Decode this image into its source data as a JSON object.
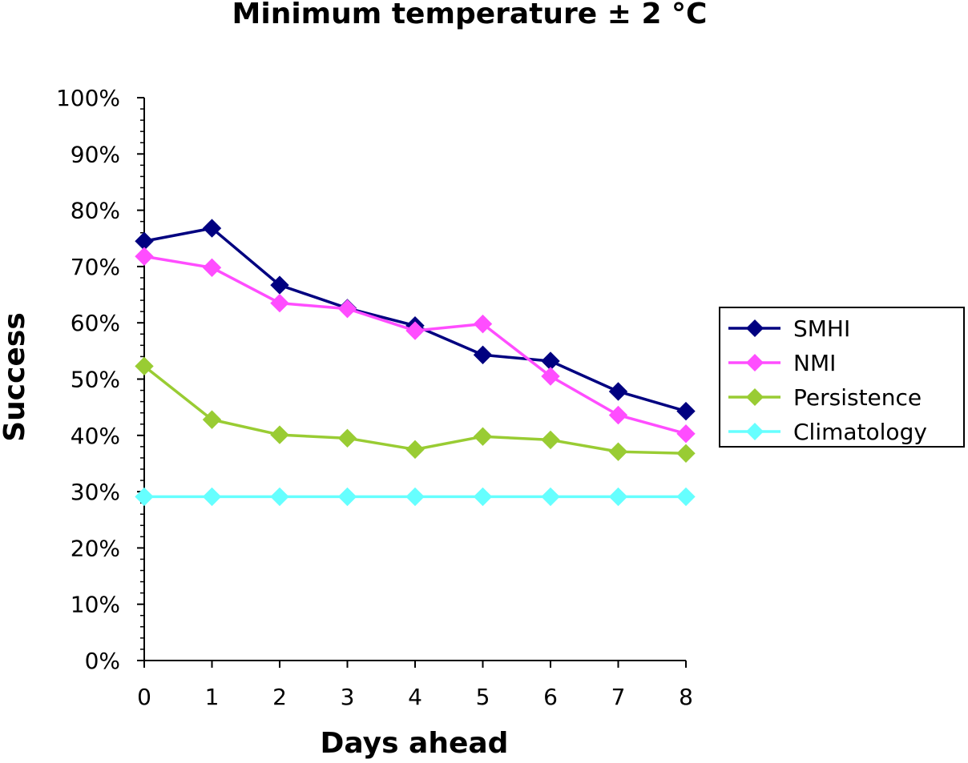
{
  "chart_data": {
    "type": "line",
    "title": "Minimum temperature ± 2 °C",
    "xlabel": "Days ahead",
    "ylabel": "Success",
    "x": [
      0,
      1,
      2,
      3,
      4,
      5,
      6,
      7,
      8
    ],
    "xlim": [
      0,
      8
    ],
    "ylim": [
      0,
      100
    ],
    "y_tick_labels": [
      "0%",
      "10%",
      "20%",
      "30%",
      "40%",
      "50%",
      "60%",
      "70%",
      "80%",
      "90%",
      "100%"
    ],
    "x_tick_labels": [
      "0",
      "1",
      "2",
      "3",
      "4",
      "5",
      "6",
      "7",
      "8"
    ],
    "grid": false,
    "legend_position": "right",
    "marker": "diamond",
    "series": [
      {
        "name": "SMHI",
        "color": "#000080",
        "values": [
          74.5,
          76.8,
          66.7,
          62.6,
          59.5,
          54.3,
          53.2,
          47.8,
          44.3
        ]
      },
      {
        "name": "NMI",
        "color": "#ff4dff",
        "values": [
          71.8,
          69.8,
          63.5,
          62.5,
          58.6,
          59.8,
          50.5,
          43.6,
          40.3
        ]
      },
      {
        "name": "Persistence",
        "color": "#99cc33",
        "values": [
          52.3,
          42.8,
          40.1,
          39.5,
          37.5,
          39.8,
          39.2,
          37.1,
          36.8
        ]
      },
      {
        "name": "Climatology",
        "color": "#66ffff",
        "values": [
          29.1,
          29.1,
          29.1,
          29.1,
          29.1,
          29.1,
          29.1,
          29.1,
          29.1
        ]
      }
    ]
  }
}
